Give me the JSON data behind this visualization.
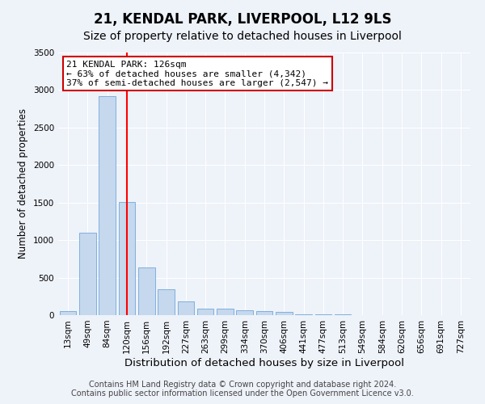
{
  "title": "21, KENDAL PARK, LIVERPOOL, L12 9LS",
  "subtitle": "Size of property relative to detached houses in Liverpool",
  "xlabel": "Distribution of detached houses by size in Liverpool",
  "ylabel": "Number of detached properties",
  "categories": [
    "13sqm",
    "49sqm",
    "84sqm",
    "120sqm",
    "156sqm",
    "192sqm",
    "227sqm",
    "263sqm",
    "299sqm",
    "334sqm",
    "370sqm",
    "406sqm",
    "441sqm",
    "477sqm",
    "513sqm",
    "549sqm",
    "584sqm",
    "620sqm",
    "656sqm",
    "691sqm",
    "727sqm"
  ],
  "values": [
    50,
    1100,
    2920,
    1510,
    640,
    340,
    185,
    90,
    90,
    65,
    50,
    40,
    15,
    10,
    8,
    5,
    3,
    3,
    2,
    2,
    2
  ],
  "bar_color": "#c5d8ed",
  "bar_edge_color": "#5b9bd5",
  "property_line_index": 3,
  "property_label": "21 KENDAL PARK: 126sqm",
  "annotation_line1": "← 63% of detached houses are smaller (4,342)",
  "annotation_line2": "37% of semi-detached houses are larger (2,547) →",
  "annotation_box_color": "#cc0000",
  "ylim": [
    0,
    3500
  ],
  "yticks": [
    0,
    500,
    1000,
    1500,
    2000,
    2500,
    3000,
    3500
  ],
  "footer_line1": "Contains HM Land Registry data © Crown copyright and database right 2024.",
  "footer_line2": "Contains public sector information licensed under the Open Government Licence v3.0.",
  "background_color": "#eef2f9",
  "plot_bg_color": "#eef2f9",
  "grid_color": "#ffffff",
  "title_fontsize": 12,
  "subtitle_fontsize": 10,
  "xlabel_fontsize": 9.5,
  "ylabel_fontsize": 8.5,
  "tick_fontsize": 7.5,
  "footer_fontsize": 7,
  "annot_fontsize": 8
}
